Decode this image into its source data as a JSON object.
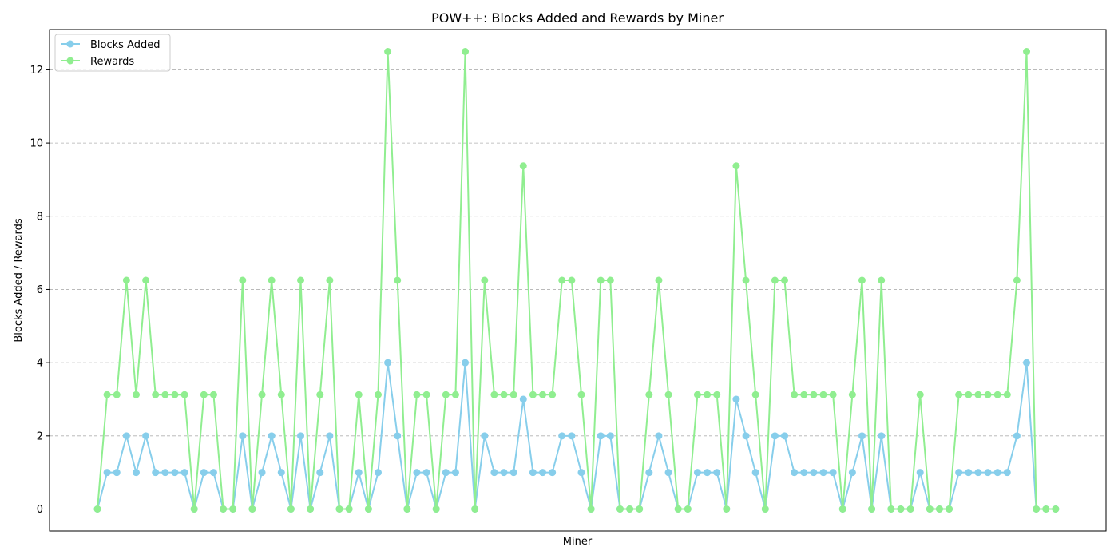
{
  "chart_data": {
    "type": "line",
    "title": "POW++: Blocks Added and Rewards by Miner",
    "xlabel": "Miner",
    "ylabel": "Blocks Added / Rewards",
    "ylim": [
      -0.6,
      13.1
    ],
    "yticks": [
      0,
      2,
      4,
      6,
      8,
      10,
      12
    ],
    "grid": "y-dashed",
    "legend_position": "top-left",
    "x_tick_labels_visible": false,
    "series": [
      {
        "name": "Blocks Added",
        "color": "#87ceeb",
        "values": [
          0,
          1,
          1,
          2,
          1,
          2,
          1,
          1,
          1,
          1,
          0,
          1,
          1,
          0,
          0,
          2,
          0,
          1,
          2,
          1,
          0,
          2,
          0,
          1,
          2,
          0,
          0,
          1,
          0,
          1,
          4,
          2,
          0,
          1,
          1,
          0,
          1,
          1,
          4,
          0,
          2,
          1,
          1,
          1,
          3,
          1,
          1,
          1,
          2,
          2,
          1,
          0,
          2,
          2,
          0,
          0,
          0,
          1,
          2,
          1,
          0,
          0,
          1,
          1,
          1,
          0,
          3,
          2,
          1,
          0,
          2,
          2,
          1,
          1,
          1,
          1,
          1,
          0,
          1,
          2,
          0,
          2,
          0,
          0,
          0,
          1,
          0,
          0,
          0,
          1,
          1,
          1,
          1,
          1,
          1,
          2,
          4,
          0,
          0,
          0
        ]
      },
      {
        "name": "Rewards",
        "color": "#90ee90",
        "values": [
          0,
          3.125,
          3.125,
          6.25,
          3.125,
          6.25,
          3.125,
          3.125,
          3.125,
          3.125,
          0,
          3.125,
          3.125,
          0,
          0,
          6.25,
          0,
          3.125,
          6.25,
          3.125,
          0,
          6.25,
          0,
          3.125,
          6.25,
          0,
          0,
          3.125,
          0,
          3.125,
          12.5,
          6.25,
          0,
          3.125,
          3.125,
          0,
          3.125,
          3.125,
          12.5,
          0,
          6.25,
          3.125,
          3.125,
          3.125,
          9.375,
          3.125,
          3.125,
          3.125,
          6.25,
          6.25,
          3.125,
          0,
          6.25,
          6.25,
          0,
          0,
          0,
          3.125,
          6.25,
          3.125,
          0,
          0,
          3.125,
          3.125,
          3.125,
          0,
          9.375,
          6.25,
          3.125,
          0,
          6.25,
          6.25,
          3.125,
          3.125,
          3.125,
          3.125,
          3.125,
          0,
          3.125,
          6.25,
          0,
          6.25,
          0,
          0,
          0,
          3.125,
          0,
          0,
          0,
          3.125,
          3.125,
          3.125,
          3.125,
          3.125,
          3.125,
          6.25,
          12.5,
          0,
          0,
          0
        ]
      }
    ]
  }
}
